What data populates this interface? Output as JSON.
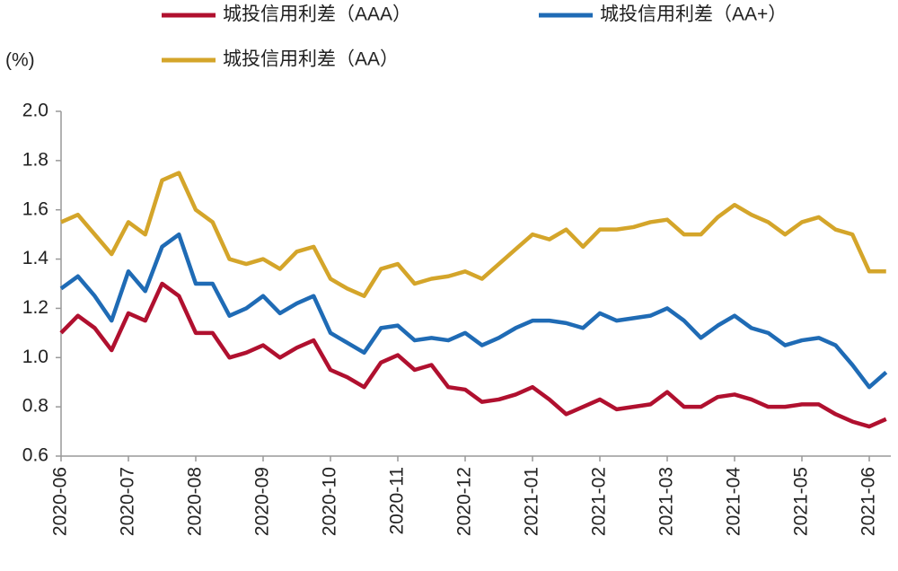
{
  "chart_data": {
    "type": "line",
    "y_unit": "(%)",
    "categories": [
      "2020-06",
      null,
      null,
      null,
      "2020-07",
      null,
      null,
      null,
      "2020-08",
      null,
      null,
      null,
      "2020-09",
      null,
      null,
      null,
      "2020-10",
      null,
      null,
      null,
      "2020-11",
      null,
      null,
      null,
      "2020-12",
      null,
      null,
      null,
      "2021-01",
      null,
      null,
      null,
      "2021-02",
      null,
      null,
      null,
      "2021-03",
      null,
      null,
      null,
      "2021-04",
      null,
      null,
      null,
      "2021-05",
      null,
      null,
      null,
      "2021-06",
      null
    ],
    "series": [
      {
        "name": "城投信用利差（AAA）",
        "color": "#b0102f",
        "values": [
          1.1,
          1.17,
          1.12,
          1.03,
          1.18,
          1.15,
          1.3,
          1.25,
          1.1,
          1.1,
          1.0,
          1.02,
          1.05,
          1.0,
          1.04,
          1.07,
          0.95,
          0.92,
          0.88,
          0.98,
          1.01,
          0.95,
          0.97,
          0.88,
          0.87,
          0.82,
          0.83,
          0.85,
          0.88,
          0.83,
          0.77,
          0.8,
          0.83,
          0.79,
          0.8,
          0.81,
          0.86,
          0.8,
          0.8,
          0.84,
          0.85,
          0.83,
          0.8,
          0.8,
          0.81,
          0.81,
          0.77,
          0.74,
          0.72,
          0.75
        ]
      },
      {
        "name": "城投信用利差（AA+）",
        "color": "#1f6bb5",
        "values": [
          1.28,
          1.33,
          1.25,
          1.15,
          1.35,
          1.27,
          1.45,
          1.5,
          1.3,
          1.3,
          1.17,
          1.2,
          1.25,
          1.18,
          1.22,
          1.25,
          1.1,
          1.06,
          1.02,
          1.12,
          1.13,
          1.07,
          1.08,
          1.07,
          1.1,
          1.05,
          1.08,
          1.12,
          1.15,
          1.15,
          1.14,
          1.12,
          1.18,
          1.15,
          1.16,
          1.17,
          1.2,
          1.15,
          1.08,
          1.13,
          1.17,
          1.12,
          1.1,
          1.05,
          1.07,
          1.08,
          1.05,
          0.97,
          0.88,
          0.94
        ]
      },
      {
        "name": "城投信用利差（AA）",
        "color": "#d4a52a",
        "values": [
          1.55,
          1.58,
          1.5,
          1.42,
          1.55,
          1.5,
          1.72,
          1.75,
          1.6,
          1.55,
          1.4,
          1.38,
          1.4,
          1.36,
          1.43,
          1.45,
          1.32,
          1.28,
          1.25,
          1.36,
          1.38,
          1.3,
          1.32,
          1.33,
          1.35,
          1.32,
          1.38,
          1.44,
          1.5,
          1.48,
          1.52,
          1.45,
          1.52,
          1.52,
          1.53,
          1.55,
          1.56,
          1.5,
          1.5,
          1.57,
          1.62,
          1.58,
          1.55,
          1.5,
          1.55,
          1.57,
          1.52,
          1.5,
          1.35,
          1.35
        ]
      }
    ],
    "ylim": [
      0.6,
      2.0
    ],
    "yticks": [
      0.6,
      0.8,
      {
        "value": 1.0,
        "label": "1.0"
      },
      1.2,
      1.4,
      1.6,
      1.8,
      {
        "value": 2.0,
        "label": "2.0"
      }
    ],
    "grid": false
  }
}
